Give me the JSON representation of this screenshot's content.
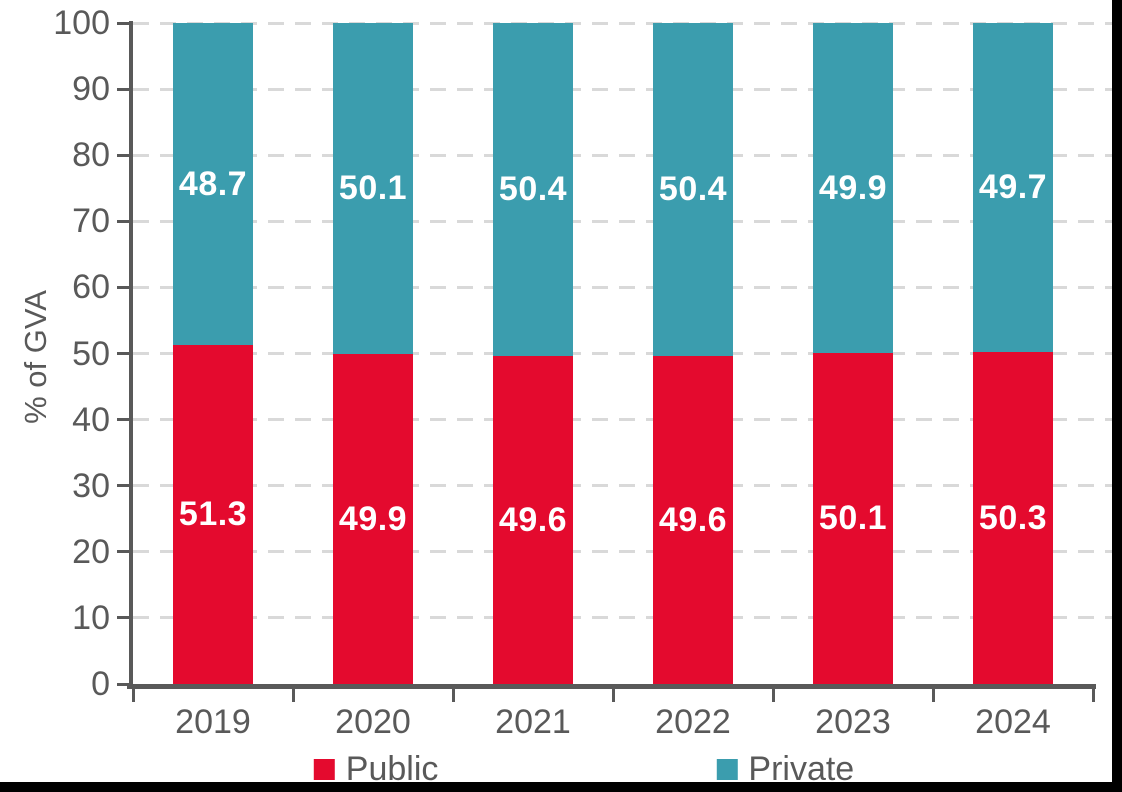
{
  "chart_data": {
    "type": "bar",
    "variant": "stacked-column",
    "title": "",
    "categories": [
      "2019",
      "2020",
      "2021",
      "2022",
      "2023",
      "2024"
    ],
    "series": [
      {
        "name": "Public",
        "color": "#e40a2e",
        "values": [
          51.3,
          49.9,
          49.6,
          49.6,
          50.1,
          50.3
        ]
      },
      {
        "name": "Private",
        "color": "#3b9dae",
        "values": [
          48.7,
          50.1,
          50.4,
          50.4,
          49.9,
          49.7
        ]
      }
    ],
    "xlabel": "",
    "ylabel": "% of GVA",
    "ylim": [
      0,
      100
    ],
    "yticks": [
      0,
      10,
      20,
      30,
      40,
      50,
      60,
      70,
      80,
      90,
      100
    ],
    "grid": "horizontal-dashed",
    "legend_position": "bottom",
    "data_labels": {
      "decimals": 1,
      "color": "#ffffff"
    }
  },
  "style": {
    "axis_color": "#595959",
    "tick_label_color": "#595959",
    "gridline_color": "#d9d9d9",
    "background": "#ffffff",
    "frame_border_color": "#000000"
  }
}
